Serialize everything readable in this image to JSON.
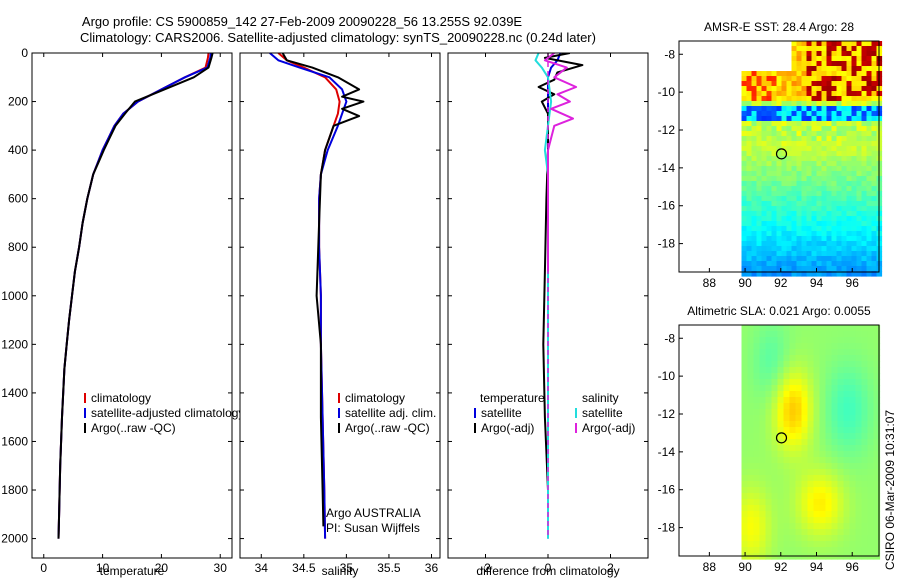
{
  "title": {
    "line1": "Argo profile: CS 5900859_142 27-Feb-2009 20090228_56 13.255S 92.039E",
    "line2": "Climatology: CARS2006. Satellite-adjusted climatology: synTS_20090228.nc (0.24d later)"
  },
  "watermark": "CSIRO 06-Mar-2009 10:31:07",
  "colors": {
    "clim": "#dd0000",
    "sat": "#0000dd",
    "argo": "#000000",
    "sal_sat": "#22dddd",
    "sal_argo": "#dd22dd"
  },
  "chart_data": [
    {
      "id": "temperature",
      "type": "line",
      "xlabel": "temperature",
      "ylabel": "",
      "xlim": [
        -2,
        32
      ],
      "ylim": [
        2080,
        0
      ],
      "xticks": [
        0,
        10,
        20,
        30
      ],
      "yticks": [
        0,
        200,
        400,
        600,
        800,
        1000,
        1200,
        1400,
        1600,
        1800,
        2000
      ],
      "series": [
        {
          "name": "climatology",
          "color": "#dd0000",
          "x": [
            28.0,
            27.9,
            27.5,
            24,
            20,
            16,
            13.5,
            12,
            11,
            10,
            9.2,
            8.4,
            7.4,
            6.6,
            6.0,
            5.3,
            4.8,
            4.3,
            3.9,
            3.5,
            3.1,
            2.8,
            2.6,
            2.5
          ],
          "y": [
            0,
            20,
            60,
            100,
            150,
            200,
            250,
            300,
            350,
            400,
            450,
            500,
            600,
            700,
            800,
            900,
            1000,
            1100,
            1200,
            1300,
            1500,
            1700,
            1900,
            2000
          ]
        },
        {
          "name": "satellite-adjusted climatology",
          "color": "#0000dd",
          "x": [
            28.4,
            28.3,
            27.8,
            24,
            20,
            16,
            13.5,
            12,
            11,
            10,
            9.2,
            8.4,
            7.4,
            6.6,
            6.0,
            5.3,
            4.8,
            4.3,
            3.9,
            3.5,
            3.1,
            2.8,
            2.6,
            2.5
          ],
          "y": [
            0,
            20,
            60,
            100,
            150,
            200,
            250,
            300,
            350,
            400,
            450,
            500,
            600,
            700,
            800,
            900,
            1000,
            1100,
            1200,
            1300,
            1500,
            1700,
            1900,
            2000
          ]
        },
        {
          "name": "Argo(..raw -QC)",
          "color": "#000000",
          "x": [
            28.7,
            28.5,
            28.0,
            25.5,
            20.5,
            15.5,
            13.8,
            12.2,
            11.2,
            10.2,
            9.3,
            8.4,
            7.4,
            6.6,
            6.0,
            5.3,
            4.8,
            4.3,
            3.9,
            3.5,
            3.1,
            2.8,
            2.6,
            2.5
          ],
          "y": [
            0,
            20,
            60,
            100,
            150,
            200,
            250,
            300,
            350,
            400,
            450,
            500,
            600,
            700,
            800,
            900,
            1000,
            1100,
            1200,
            1300,
            1500,
            1700,
            1900,
            2000
          ]
        }
      ],
      "legend": [
        "climatology",
        "satellite-adjusted climatology",
        "Argo(..raw -QC)"
      ],
      "legend_colors": [
        "#dd0000",
        "#0000dd",
        "#000000"
      ]
    },
    {
      "id": "salinity",
      "type": "line",
      "xlabel": "salinity",
      "ylabel": "",
      "xlim": [
        33.75,
        36.1
      ],
      "ylim": [
        2080,
        0
      ],
      "xticks": [
        34,
        34.5,
        35,
        35.5,
        36
      ],
      "yticks": [],
      "series": [
        {
          "name": "climatology",
          "color": "#dd0000",
          "x": [
            34.2,
            34.3,
            34.5,
            34.75,
            34.88,
            34.92,
            34.9,
            34.85,
            34.75,
            34.7,
            34.68,
            34.68,
            34.7,
            34.7,
            34.72,
            34.74,
            34.75
          ],
          "y": [
            0,
            30,
            60,
            100,
            150,
            200,
            250,
            300,
            400,
            500,
            600,
            800,
            1000,
            1200,
            1500,
            1800,
            2000
          ]
        },
        {
          "name": "satellite adj. clim.",
          "color": "#0000dd",
          "x": [
            34.1,
            34.2,
            34.45,
            34.8,
            34.95,
            35.0,
            34.95,
            34.9,
            34.78,
            34.7,
            34.68,
            34.68,
            34.7,
            34.7,
            34.72,
            34.74,
            34.75
          ],
          "y": [
            0,
            30,
            60,
            100,
            150,
            200,
            250,
            300,
            400,
            500,
            600,
            800,
            1000,
            1200,
            1500,
            1800,
            2000
          ]
        },
        {
          "name": "Argo(..raw -QC)",
          "color": "#000000",
          "x": [
            34.25,
            34.3,
            34.6,
            34.9,
            35.15,
            34.95,
            35.2,
            34.95,
            35.15,
            34.85,
            34.75,
            34.7,
            34.68,
            34.65,
            34.7,
            34.7,
            34.72,
            34.73
          ],
          "y": [
            0,
            30,
            60,
            100,
            150,
            180,
            200,
            230,
            260,
            300,
            400,
            500,
            700,
            1000,
            1200,
            1500,
            1800,
            1950
          ]
        }
      ],
      "legend": [
        "climatology",
        "satellite adj. clim.",
        "Argo(..raw -QC)"
      ],
      "legend_colors": [
        "#dd0000",
        "#0000dd",
        "#000000"
      ],
      "annotation": [
        "Argo AUSTRALIA",
        "PI: Susan Wijffels"
      ]
    },
    {
      "id": "difference",
      "type": "line",
      "xlabel": "difference from climatology",
      "ylabel": "",
      "xlim": [
        -3.2,
        3.2
      ],
      "ylim": [
        2080,
        0
      ],
      "xticks": [
        -2,
        0,
        2
      ],
      "yticks": [],
      "series": [
        {
          "name": "temperature satellite",
          "color": "#0000dd",
          "x": [
            0.4,
            0.3,
            0.1,
            0,
            0,
            0,
            0,
            0,
            0,
            0,
            0,
            0
          ],
          "y": [
            0,
            30,
            60,
            100,
            200,
            300,
            500,
            800,
            1100,
            1400,
            1700,
            2000
          ]
        },
        {
          "name": "temperature Argo(-adj)",
          "color": "#000000",
          "x": [
            0.7,
            -0.1,
            1.1,
            0.3,
            0.2,
            -0.3,
            0.2,
            -0.2,
            0,
            0,
            0,
            -0.05,
            -0.1,
            -0.15,
            -0.1,
            0
          ],
          "y": [
            0,
            20,
            50,
            80,
            110,
            140,
            170,
            200,
            250,
            300,
            400,
            600,
            900,
            1200,
            1500,
            1800
          ]
        },
        {
          "name": "salinity satellite",
          "color": "#22dddd",
          "x": [
            -0.3,
            -0.4,
            -0.2,
            0,
            0.1,
            0,
            -0.1,
            0,
            0,
            0,
            0,
            0
          ],
          "y": [
            0,
            30,
            60,
            100,
            200,
            300,
            400,
            500,
            800,
            1100,
            1500,
            2000
          ]
        },
        {
          "name": "salinity Argo(-adj)",
          "color": "#dd22dd",
          "x": [
            0.2,
            -0.1,
            0.6,
            0.2,
            0.9,
            0.3,
            0.7,
            0.1,
            0.8,
            0.2,
            0,
            0,
            0
          ],
          "y": [
            0,
            30,
            60,
            100,
            140,
            170,
            200,
            230,
            270,
            300,
            400,
            600,
            900
          ]
        },
        {
          "name": "reference",
          "color": "#dd22dd",
          "x": [
            0,
            0
          ],
          "y": [
            0,
            2000
          ]
        }
      ],
      "legend_left_title": "temperature",
      "legend_left": [
        "satellite",
        "Argo(-adj)"
      ],
      "legend_left_colors": [
        "#0000dd",
        "#000000"
      ],
      "legend_right_title": "salinity",
      "legend_right": [
        "satellite",
        "Argo(-adj)"
      ],
      "legend_right_colors": [
        "#22dddd",
        "#dd22dd"
      ]
    },
    {
      "id": "sst_map",
      "type": "heatmap",
      "title": "AMSR-E SST: 28.4 Argo: 28",
      "xlim": [
        86.3,
        97.5
      ],
      "ylim": [
        -19.5,
        -7.3
      ],
      "xticks": [
        88,
        90,
        92,
        94,
        96
      ],
      "yticks": [
        -8,
        -10,
        -12,
        -14,
        -16,
        -18
      ],
      "data_extent": [
        89.8,
        97.5
      ],
      "profile_marker": {
        "lon": 92.04,
        "lat": -13.26
      }
    },
    {
      "id": "sla_map",
      "type": "heatmap",
      "title": "Altimetric SLA: 0.021 Argo: 0.0055",
      "xlim": [
        86.3,
        97.5
      ],
      "ylim": [
        -19.5,
        -7.3
      ],
      "xticks": [
        88,
        90,
        92,
        94,
        96
      ],
      "yticks": [
        -8,
        -10,
        -12,
        -14,
        -16,
        -18
      ],
      "data_extent": [
        89.8,
        97.5
      ],
      "profile_marker": {
        "lon": 92.04,
        "lat": -13.26
      }
    }
  ]
}
